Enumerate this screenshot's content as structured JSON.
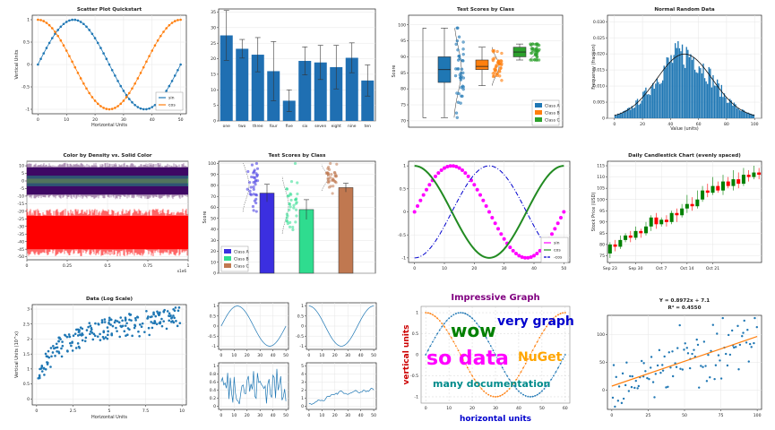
{
  "charts": [
    {
      "id": "scatter",
      "type": "line",
      "title": "Scatter Plot Quickstart",
      "xlabel": "Horizontal Units",
      "ylabel": "Vertical Units",
      "xlim": [
        -2,
        52
      ],
      "ylim": [
        -1.1,
        1.1
      ],
      "xticks": [
        0,
        10,
        20,
        30,
        40,
        50
      ],
      "yticks": [
        -1,
        -0.5,
        0,
        0.5,
        1
      ],
      "ytick_labels": [
        "-1",
        "-0.5",
        "0",
        "0.5",
        "1"
      ],
      "legend": "bottom-right",
      "series": [
        {
          "name": "sin",
          "color": "#1f77b4",
          "func": "sin",
          "points": 51,
          "period": 50
        },
        {
          "name": "cos",
          "color": "#ff7f0e",
          "func": "cos",
          "points": 51,
          "period": 50
        }
      ]
    },
    {
      "id": "errbars",
      "type": "bar",
      "title": "",
      "categories": [
        "one",
        "two",
        "three",
        "four",
        "five",
        "six",
        "seven",
        "eight",
        "nine",
        "ten"
      ],
      "values": [
        27.5,
        23.2,
        21.3,
        16.0,
        6.5,
        19.3,
        18.8,
        17.3,
        20.3,
        13.0
      ],
      "errors": [
        8.0,
        3.0,
        5.5,
        9.5,
        3.5,
        4.5,
        5.5,
        7.0,
        4.8,
        5.0
      ],
      "ylim": [
        0,
        36
      ],
      "yticks": [
        0,
        5,
        10,
        15,
        20,
        25,
        30,
        35
      ],
      "color": "#1f6fb2"
    },
    {
      "id": "boxes",
      "type": "box",
      "title": "Test Scores by Class",
      "ylabel": "Score",
      "ylim": [
        68,
        103
      ],
      "yticks": [
        70,
        75,
        80,
        85,
        90,
        95,
        100
      ],
      "legend": "bottom-right",
      "series": [
        {
          "name": "Class A",
          "color": "#1f77b4",
          "whisker_low": 71,
          "q1": 82,
          "median": 86,
          "q3": 90,
          "whisker_high": 99
        },
        {
          "name": "Class B",
          "color": "#ff7f0e",
          "whisker_low": 81,
          "q1": 86,
          "median": 87,
          "q3": 89,
          "whisker_high": 93
        },
        {
          "name": "Class C",
          "color": "#2ca02c",
          "whisker_low": 89,
          "q1": 90,
          "median": 91.5,
          "q3": 93,
          "whisker_high": 94
        }
      ]
    },
    {
      "id": "hist",
      "type": "histogram",
      "title": "Normal Random Data",
      "xlabel": "Value (units)",
      "ylabel": "Frequency (fraction)",
      "xlim": [
        -5,
        105
      ],
      "ylim": [
        0,
        0.032
      ],
      "xticks": [
        0,
        20,
        40,
        60,
        80,
        100
      ],
      "yticks": [
        0,
        0.005,
        0.01,
        0.015,
        0.02,
        0.025,
        0.03
      ],
      "ytick_labels": [
        "0",
        "0.005",
        "0.010",
        "0.015",
        "0.020",
        "0.025",
        "0.030"
      ],
      "mean": 50,
      "stdev": 20,
      "color": "#1f77b4"
    },
    {
      "id": "density",
      "type": "scatter",
      "title": "Color by Density vs. Solid Color",
      "xlim": [
        0,
        1000000
      ],
      "ylim": [
        -52,
        13
      ],
      "xticks": [
        0,
        250000,
        500000,
        750000,
        1000000
      ],
      "xtick_labels": [
        "0",
        "0.25",
        "0.5",
        "0.75",
        "1"
      ],
      "x_multiplier": "x1e6",
      "yticks": [
        10,
        5,
        0,
        -5,
        -10,
        -15,
        -20,
        -25,
        -30,
        -35,
        -40,
        -45,
        -50
      ],
      "band_a_center": 0,
      "band_a_halfwidth": 9,
      "band_b_center": -34,
      "band_b_halfwidth": 11
    },
    {
      "id": "barsjitter",
      "type": "bar",
      "title": "Test Scores by Class",
      "ylabel": "Score",
      "ylim": [
        0,
        102
      ],
      "yticks": [
        0,
        10,
        20,
        30,
        40,
        50,
        60,
        70,
        80,
        90,
        100
      ],
      "legend": "bottom-left",
      "series": [
        {
          "name": "Class A",
          "color": "#3b2fe0",
          "value": 73,
          "error": 8,
          "jitter_mean": 80,
          "jitter_sd": 12
        },
        {
          "name": "Class B",
          "color": "#2fdc8f",
          "value": 58,
          "error": 9,
          "jitter_mean": 62,
          "jitter_sd": 13
        },
        {
          "name": "Class C",
          "color": "#c07850",
          "value": 78,
          "error": 4,
          "jitter_mean": 87,
          "jitter_sd": 6
        }
      ]
    },
    {
      "id": "styled",
      "type": "line",
      "title": "",
      "xlim": [
        -2,
        52
      ],
      "ylim": [
        -1.1,
        1.1
      ],
      "xticks": [
        0,
        10,
        20,
        30,
        40,
        50
      ],
      "yticks": [
        -1,
        -0.5,
        0,
        0.5,
        1
      ],
      "ytick_labels": [
        "-1",
        "-0.5",
        "0",
        "0.5",
        "1"
      ],
      "legend": "bottom-right",
      "series": [
        {
          "name": "sin",
          "color": "#ff00ff",
          "style": "markers",
          "func": "sin"
        },
        {
          "name": "cos",
          "color": "#228b22",
          "style": "solid",
          "func": "cos"
        },
        {
          "name": "-cos",
          "color": "#0000cd",
          "style": "dashdot",
          "func": "-cos"
        }
      ]
    },
    {
      "id": "candle",
      "type": "candlestick",
      "title": "Daily Candlestick Chart (evenly spaced)",
      "ylabel": "Stock Price (USD)",
      "ylim": [
        72,
        117
      ],
      "yticks": [
        75,
        80,
        85,
        90,
        95,
        100,
        105,
        110,
        115
      ],
      "xtick_labels": [
        "Sep 23",
        "Sep 30",
        "Oct 7",
        "Oct 14",
        "Oct 21"
      ],
      "xtick_index": [
        0,
        5,
        10,
        15,
        20
      ],
      "up_color": "#008000",
      "down_color": "#ff0000",
      "candles": [
        [
          76,
          80,
          74,
          81
        ],
        [
          80,
          79,
          77,
          82
        ],
        [
          79,
          82,
          78,
          84
        ],
        [
          82,
          84,
          81,
          85
        ],
        [
          84,
          83,
          81,
          86
        ],
        [
          83,
          86,
          82,
          88
        ],
        [
          86,
          85,
          83,
          87
        ],
        [
          85,
          88,
          84,
          90
        ],
        [
          88,
          92,
          86,
          93
        ],
        [
          92,
          89,
          87,
          94
        ],
        [
          89,
          91,
          88,
          92
        ],
        [
          91,
          90,
          88,
          93
        ],
        [
          90,
          94,
          89,
          95
        ],
        [
          94,
          93,
          90,
          96
        ],
        [
          93,
          96,
          92,
          98
        ],
        [
          96,
          98,
          94,
          102
        ],
        [
          98,
          97,
          95,
          101
        ],
        [
          97,
          100,
          96,
          104
        ],
        [
          100,
          104,
          99,
          106
        ],
        [
          104,
          103,
          101,
          107
        ],
        [
          103,
          106,
          102,
          110
        ],
        [
          106,
          104,
          103,
          108
        ],
        [
          104,
          108,
          102,
          111
        ],
        [
          108,
          106,
          105,
          110
        ],
        [
          106,
          109,
          104,
          113
        ],
        [
          109,
          107,
          105,
          112
        ],
        [
          107,
          111,
          106,
          114
        ],
        [
          111,
          110,
          108,
          113
        ],
        [
          110,
          112,
          109,
          115
        ],
        [
          112,
          111,
          109,
          114
        ]
      ]
    },
    {
      "id": "logscale",
      "type": "scatter",
      "title": "Data (Log Scale)",
      "xlabel": "Horizontal Units",
      "ylabel": "Vertical Units (10^x)",
      "xlim": [
        -0.3,
        10.3
      ],
      "ylim": [
        -0.2,
        3.15
      ],
      "xticks": [
        0,
        2.5,
        5,
        7.5,
        10
      ],
      "xtick_labels": [
        "0",
        "2.5",
        "5",
        "7.5",
        "10"
      ],
      "yticks": [
        0,
        0.5,
        1,
        1.5,
        2,
        2.5,
        3
      ],
      "ytick_labels": [
        "0",
        "0.5",
        "1",
        "1.5",
        "2",
        "2.5",
        "3"
      ],
      "color": "#1f77b4"
    },
    {
      "id": "multiplot",
      "type": "line",
      "title": "",
      "color": "#1f77b4",
      "subplots": [
        {
          "name": "sine",
          "xticks": [
            0,
            10,
            20,
            30,
            40,
            50
          ],
          "yticks": [
            1,
            0.5,
            0,
            -0.5,
            -1
          ],
          "ytick_labels": [
            "1",
            "0.5",
            "0",
            "-0.5",
            "-1"
          ]
        },
        {
          "name": "cosine",
          "xticks": [
            0,
            10,
            20,
            30,
            40,
            50
          ],
          "yticks": [
            1,
            0.5,
            0,
            -0.5,
            -1
          ],
          "ytick_labels": [
            "1",
            "0.5",
            "0",
            "-0.5",
            "-1"
          ]
        },
        {
          "name": "noise",
          "xticks": [
            0,
            10,
            20,
            30,
            40,
            50
          ],
          "yticks": [
            1,
            0.8,
            0.6,
            0.4,
            0.2,
            0
          ],
          "ytick_labels": [
            "1",
            "0.8",
            "0.6",
            "0.4",
            "0.2",
            "0"
          ]
        },
        {
          "name": "walk",
          "xticks": [
            0,
            10,
            20,
            30,
            40,
            50
          ],
          "yticks": [
            5,
            4,
            3,
            2,
            1,
            0
          ],
          "ytick_labels": [
            "5",
            "4",
            "3",
            "2",
            "1",
            "0"
          ]
        }
      ]
    },
    {
      "id": "impressive",
      "type": "line",
      "title": "Impressive Graph",
      "xlabel": "horizontal units",
      "ylabel": "vertical units",
      "xticks": [
        0,
        10,
        20,
        30,
        40,
        50,
        60
      ],
      "xtick_labels": [
        "0",
        "10",
        "20",
        "30",
        "40",
        "50",
        "60"
      ],
      "yticks": [
        1,
        0.5,
        0,
        -0.5,
        -1
      ],
      "ytick_labels": [
        "1",
        "0.5",
        "0",
        "-0.5",
        "-1"
      ],
      "annotations": [
        {
          "text": "wow",
          "color": "#008000",
          "size": 20
        },
        {
          "text": "very graph",
          "color": "#0000cd",
          "size": 14
        },
        {
          "text": "so data",
          "color": "#ff00ff",
          "size": 22
        },
        {
          "text": "NuGet",
          "color": "#ffa500",
          "size": 14
        },
        {
          "text": "many documentation",
          "color": "#008b8b",
          "size": 11
        }
      ]
    },
    {
      "id": "regression",
      "type": "scatter",
      "title": "Y = 0.8972x + 7.1",
      "subtitle": "R² = 0.4550",
      "xlim": [
        -3,
        103
      ],
      "ylim": [
        -35,
        135
      ],
      "slope": 0.8972,
      "intercept": 7.1,
      "xticks": [
        0,
        25,
        50,
        75,
        100
      ],
      "yticks": [
        100,
        50,
        0
      ],
      "point_color": "#1f77b4",
      "line_color": "#ff7f0e"
    }
  ]
}
